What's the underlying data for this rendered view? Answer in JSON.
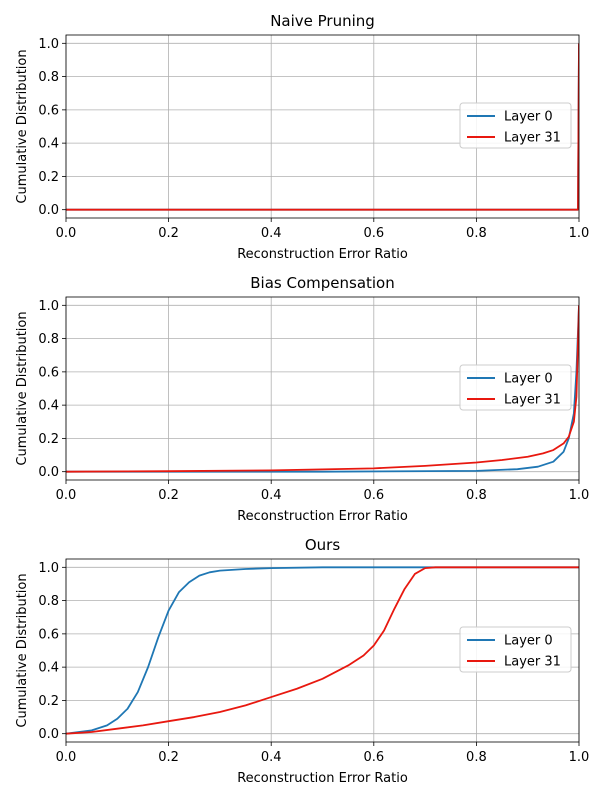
{
  "chart_data": [
    {
      "type": "line",
      "title": "Naive Pruning",
      "xlabel": "Reconstruction Error Ratio",
      "ylabel": "Cumulative Distribution",
      "xlim": [
        0.0,
        1.0
      ],
      "ylim": [
        -0.05,
        1.05
      ],
      "xticks": [
        "0.0",
        "0.2",
        "0.4",
        "0.6",
        "0.8",
        "1.0"
      ],
      "yticks": [
        "0.0",
        "0.2",
        "0.4",
        "0.6",
        "0.8",
        "1.0"
      ],
      "grid": true,
      "legend_position": "center-right",
      "series": [
        {
          "name": "Layer 0",
          "color": "#1f77b4",
          "x": [
            0.0,
            0.998,
            0.999,
            1.0
          ],
          "y": [
            0.0,
            0.0,
            0.5,
            1.0
          ]
        },
        {
          "name": "Layer 31",
          "color": "#e8180f",
          "x": [
            0.0,
            0.998,
            0.999,
            1.0
          ],
          "y": [
            0.0,
            0.0,
            0.5,
            1.0
          ]
        }
      ]
    },
    {
      "type": "line",
      "title": "Bias Compensation",
      "xlabel": "Reconstruction Error Ratio",
      "ylabel": "Cumulative Distribution",
      "xlim": [
        0.0,
        1.0
      ],
      "ylim": [
        -0.05,
        1.05
      ],
      "xticks": [
        "0.0",
        "0.2",
        "0.4",
        "0.6",
        "0.8",
        "1.0"
      ],
      "yticks": [
        "0.0",
        "0.2",
        "0.4",
        "0.6",
        "0.8",
        "1.0"
      ],
      "grid": true,
      "legend_position": "center-right",
      "series": [
        {
          "name": "Layer 0",
          "color": "#1f77b4",
          "x": [
            0.0,
            0.5,
            0.8,
            0.88,
            0.92,
            0.95,
            0.97,
            0.98,
            0.99,
            0.995,
            1.0
          ],
          "y": [
            0.0,
            0.0,
            0.005,
            0.015,
            0.03,
            0.06,
            0.12,
            0.2,
            0.35,
            0.6,
            1.0
          ]
        },
        {
          "name": "Layer 31",
          "color": "#e8180f",
          "x": [
            0.0,
            0.2,
            0.4,
            0.6,
            0.7,
            0.8,
            0.85,
            0.9,
            0.93,
            0.95,
            0.97,
            0.98,
            0.99,
            0.995,
            1.0
          ],
          "y": [
            0.0,
            0.003,
            0.008,
            0.02,
            0.035,
            0.055,
            0.07,
            0.09,
            0.11,
            0.13,
            0.17,
            0.21,
            0.3,
            0.45,
            1.0
          ]
        }
      ]
    },
    {
      "type": "line",
      "title": "Ours",
      "xlabel": "Reconstruction Error Ratio",
      "ylabel": "Cumulative Distribution",
      "xlim": [
        0.0,
        1.0
      ],
      "ylim": [
        -0.05,
        1.05
      ],
      "xticks": [
        "0.0",
        "0.2",
        "0.4",
        "0.6",
        "0.8",
        "1.0"
      ],
      "yticks": [
        "0.0",
        "0.2",
        "0.4",
        "0.6",
        "0.8",
        "1.0"
      ],
      "grid": true,
      "legend_position": "center-right",
      "series": [
        {
          "name": "Layer 0",
          "color": "#1f77b4",
          "x": [
            0.0,
            0.05,
            0.08,
            0.1,
            0.12,
            0.14,
            0.16,
            0.18,
            0.2,
            0.22,
            0.24,
            0.26,
            0.28,
            0.3,
            0.35,
            0.4,
            0.5,
            0.6,
            1.0
          ],
          "y": [
            0.0,
            0.02,
            0.05,
            0.09,
            0.15,
            0.25,
            0.4,
            0.58,
            0.74,
            0.85,
            0.91,
            0.95,
            0.97,
            0.98,
            0.99,
            0.995,
            1.0,
            1.0,
            1.0
          ]
        },
        {
          "name": "Layer 31",
          "color": "#e8180f",
          "x": [
            0.0,
            0.05,
            0.1,
            0.15,
            0.2,
            0.25,
            0.3,
            0.35,
            0.4,
            0.45,
            0.5,
            0.55,
            0.58,
            0.6,
            0.62,
            0.64,
            0.66,
            0.68,
            0.7,
            0.72,
            0.75,
            1.0
          ],
          "y": [
            0.0,
            0.01,
            0.03,
            0.05,
            0.075,
            0.1,
            0.13,
            0.17,
            0.22,
            0.27,
            0.33,
            0.41,
            0.47,
            0.53,
            0.62,
            0.75,
            0.87,
            0.96,
            0.995,
            1.0,
            1.0,
            1.0
          ]
        }
      ]
    }
  ]
}
